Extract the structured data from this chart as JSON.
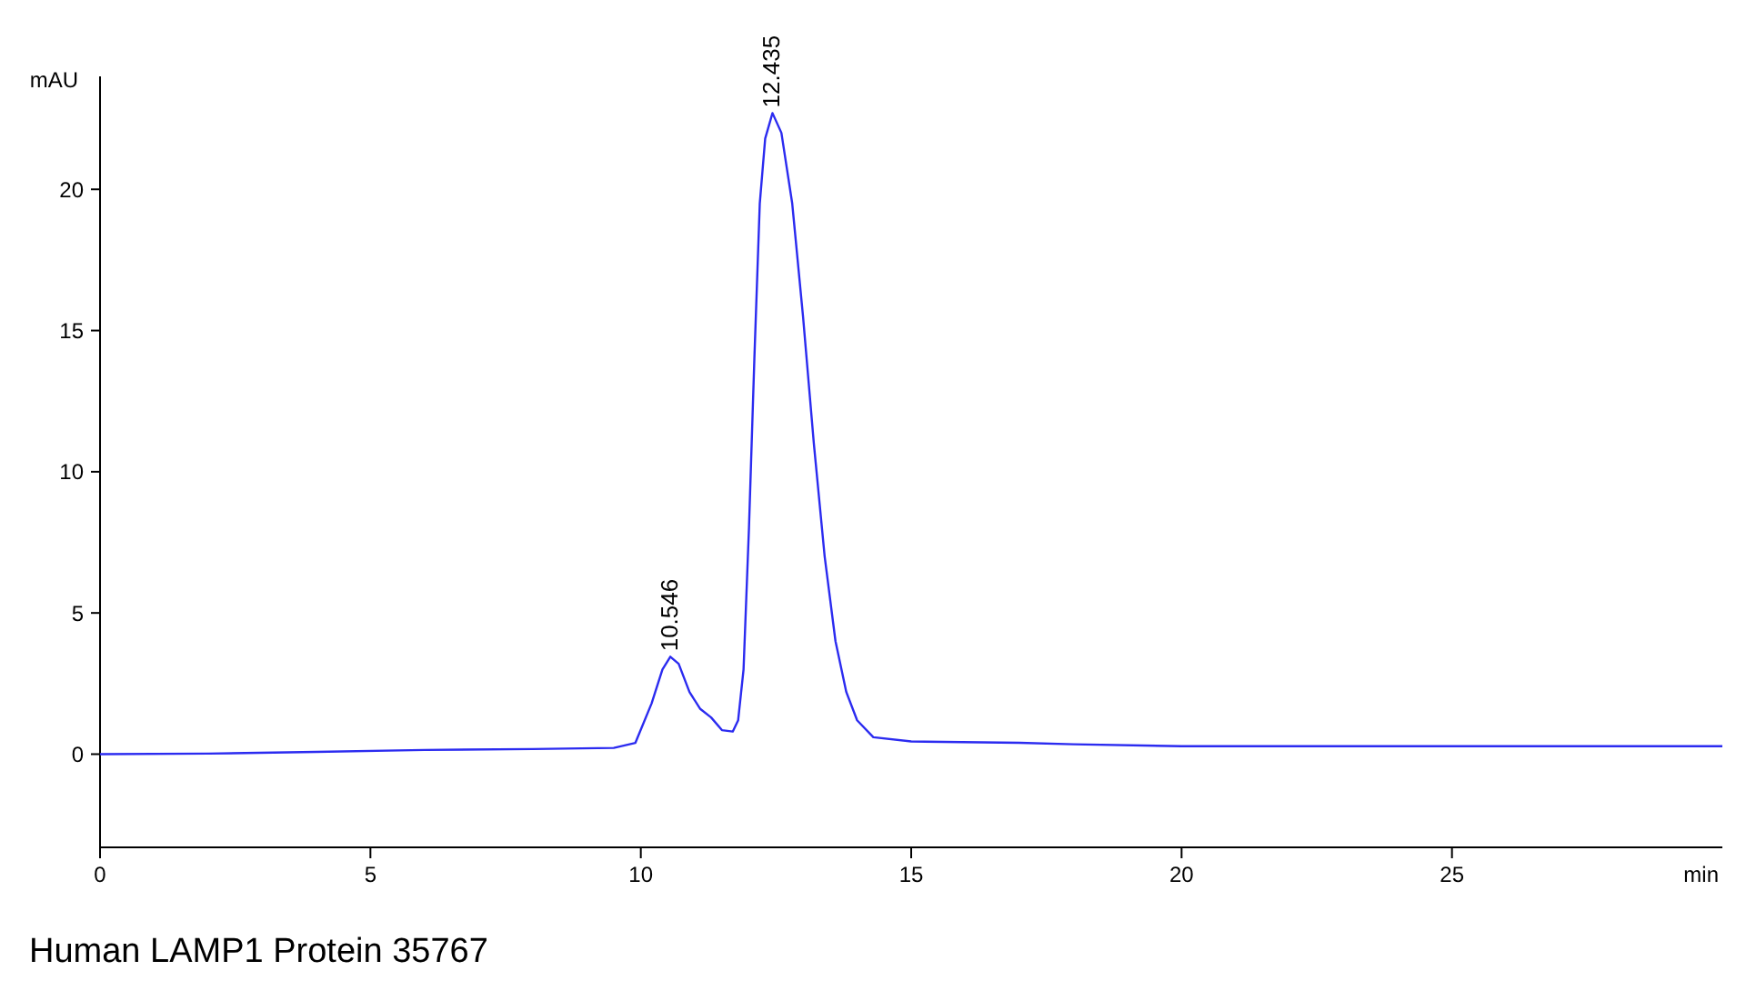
{
  "chart_data": {
    "type": "line",
    "ylabel": "mAU",
    "xlabel": "min",
    "xlim": [
      0,
      30
    ],
    "xticks": [
      0,
      5,
      10,
      15,
      20,
      25
    ],
    "ylim": [
      -3.3,
      24
    ],
    "yticks": [
      0,
      5,
      10,
      15,
      20
    ],
    "grid": false,
    "marker": "none",
    "line_style": "solid",
    "series": [
      {
        "color": "#2b2bf0",
        "x": [
          0,
          2,
          4,
          6,
          8,
          9.5,
          9.9,
          10.2,
          10.4,
          10.546,
          10.7,
          10.9,
          11.1,
          11.3,
          11.5,
          11.7,
          11.8,
          11.9,
          12.0,
          12.1,
          12.2,
          12.3,
          12.435,
          12.6,
          12.8,
          13.0,
          13.2,
          13.4,
          13.6,
          13.8,
          14.0,
          14.3,
          15,
          17,
          18,
          20,
          25,
          30
        ],
        "values": [
          0.0,
          0.02,
          0.08,
          0.15,
          0.18,
          0.22,
          0.4,
          1.8,
          3.0,
          3.45,
          3.2,
          2.2,
          1.6,
          1.3,
          0.85,
          0.8,
          1.2,
          3.0,
          8,
          14,
          19.5,
          21.8,
          22.7,
          22.0,
          19.5,
          15.5,
          11,
          7,
          4,
          2.2,
          1.2,
          0.6,
          0.45,
          0.4,
          0.35,
          0.28,
          0.28,
          0.28
        ]
      }
    ],
    "annotations": [
      {
        "text": "10.546",
        "x": 10.546,
        "y": 3.45
      },
      {
        "text": "12.435",
        "x": 12.435,
        "y": 22.7
      },
      "Human LAMP1 Protein 35767"
    ]
  }
}
